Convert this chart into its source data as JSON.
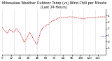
{
  "title": "Milwaukee Weather Outdoor Temp (vs) Wind Chill per Minute (Last 24 Hours)",
  "bg_color": "#ffffff",
  "plot_bg_color": "#ffffff",
  "line1_color": "#cc0000",
  "line2_color": "#0000cc",
  "ylim": [
    -2,
    5
  ],
  "ytick_labels": [
    "4",
    "3",
    "2",
    "1",
    "0",
    "-1"
  ],
  "ytick_vals": [
    4,
    3,
    2,
    1,
    0,
    -1
  ],
  "num_points": 144,
  "temp_data": [
    2.2,
    2.0,
    1.8,
    1.7,
    1.6,
    1.5,
    1.4,
    1.3,
    1.5,
    1.7,
    1.9,
    1.8,
    1.7,
    1.6,
    1.5,
    1.4,
    1.5,
    1.6,
    1.8,
    2.0,
    1.9,
    1.7,
    1.6,
    1.5,
    1.4,
    1.2,
    1.0,
    0.8,
    0.5,
    0.2,
    -0.1,
    0.0,
    0.2,
    0.4,
    0.6,
    0.8,
    1.0,
    1.2,
    1.4,
    1.2,
    1.0,
    0.8,
    0.6,
    0.4,
    0.2,
    0.0,
    -0.2,
    -0.4,
    -0.3,
    0.0,
    0.4,
    0.8,
    1.2,
    1.6,
    1.8,
    2.0,
    2.1,
    2.2,
    2.3,
    2.4,
    2.4,
    2.5,
    2.6,
    2.6,
    2.7,
    2.8,
    2.9,
    3.0,
    3.1,
    3.2,
    3.2,
    3.2,
    3.2,
    3.3,
    3.4,
    3.5,
    3.5,
    3.6,
    3.7,
    3.7,
    3.7,
    3.7,
    3.7,
    3.7,
    3.7,
    3.7,
    3.7,
    3.7,
    3.7,
    3.7,
    3.7,
    3.8,
    3.8,
    3.8,
    3.8,
    3.8,
    3.8,
    3.8,
    3.8,
    3.7,
    3.7,
    3.7,
    3.7,
    3.7,
    3.7,
    3.6,
    3.6,
    3.6,
    3.6,
    3.6,
    3.5,
    3.5,
    3.5,
    3.5,
    3.6,
    3.6,
    3.6,
    3.6,
    3.7,
    3.7,
    3.7,
    3.7,
    3.7,
    3.7,
    3.7,
    3.7,
    3.7,
    3.7,
    3.7,
    3.7,
    3.7,
    3.7,
    3.8,
    3.8,
    3.8,
    3.8,
    3.8,
    3.8,
    3.8,
    3.8,
    3.8,
    3.8,
    3.8,
    3.8
  ],
  "wind_chill_data": [
    null,
    null,
    null,
    null,
    null,
    null,
    null,
    null,
    null,
    null,
    null,
    null,
    null,
    null,
    null,
    null,
    null,
    null,
    null,
    null,
    null,
    null,
    null,
    null,
    null,
    null,
    null,
    null,
    null,
    null,
    null,
    null,
    null,
    null,
    null,
    null,
    null,
    null,
    null,
    null,
    null,
    null,
    null,
    null,
    null,
    null,
    null,
    null,
    null,
    null,
    null,
    null,
    null,
    null,
    null,
    null,
    null,
    null,
    null,
    null,
    null,
    null,
    null,
    null,
    null,
    null,
    null,
    null,
    null,
    null,
    null,
    null,
    null,
    null,
    null,
    null,
    null,
    null,
    null,
    null,
    null,
    null,
    null,
    null,
    null,
    null,
    null,
    null,
    null,
    null,
    null,
    null,
    null,
    null,
    null,
    null,
    null,
    null,
    null,
    null,
    null,
    null,
    null,
    null,
    null,
    null,
    null,
    null,
    null,
    null,
    null,
    null,
    null,
    null,
    null,
    null,
    null,
    null,
    null,
    null,
    null,
    null,
    null,
    null,
    null,
    null,
    null,
    null,
    null,
    null,
    null,
    null,
    null,
    null,
    null,
    null,
    0.8,
    0.8,
    0.8,
    0.8,
    0.8,
    0.8,
    0.8,
    0.8
  ],
  "vlines_x": [
    0,
    16,
    32,
    48,
    64,
    80,
    96,
    112,
    128
  ],
  "title_fontsize": 3.5,
  "tick_fontsize": 3.0
}
